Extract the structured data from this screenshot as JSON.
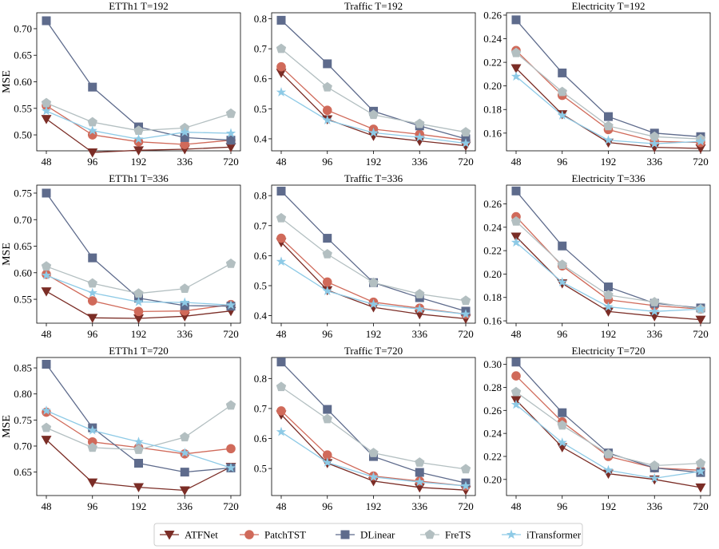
{
  "series_styles": [
    {
      "name": "ATFNet",
      "color": "#7b2d26",
      "marker": "triangle-down-icon"
    },
    {
      "name": "PatchTST",
      "color": "#d06a5a",
      "marker": "circle-icon"
    },
    {
      "name": "DLinear",
      "color": "#5e6b8c",
      "marker": "square-icon"
    },
    {
      "name": "FreTS",
      "color": "#b3bfc1",
      "marker": "pentagon-icon"
    },
    {
      "name": "iTransformer",
      "color": "#8ecae6",
      "marker": "star-icon"
    }
  ],
  "chart_data": [
    {
      "type": "line",
      "title": "ETTh1 T=192",
      "ylabel": "MSE",
      "xlabel": "",
      "categories": [
        "48",
        "96",
        "192",
        "336",
        "720"
      ],
      "ylim": [
        0.47,
        0.73
      ],
      "yticks": [
        0.5,
        0.55,
        0.6,
        0.65,
        0.7
      ],
      "yticklabels": [
        "0.50",
        "0.55",
        "0.60",
        "0.65",
        "0.70"
      ],
      "series": [
        {
          "name": "ATFNet",
          "values": [
            0.53,
            0.467,
            0.471,
            0.473,
            0.477
          ]
        },
        {
          "name": "PatchTST",
          "values": [
            0.555,
            0.5,
            0.487,
            0.482,
            0.49
          ]
        },
        {
          "name": "DLinear",
          "values": [
            0.715,
            0.59,
            0.515,
            0.495,
            0.49
          ]
        },
        {
          "name": "FreTS",
          "values": [
            0.56,
            0.524,
            0.508,
            0.513,
            0.54
          ]
        },
        {
          "name": "iTransformer",
          "values": [
            0.545,
            0.508,
            0.492,
            0.505,
            0.503
          ]
        }
      ]
    },
    {
      "type": "line",
      "title": "Traffic T=192",
      "ylabel": "",
      "xlabel": "",
      "categories": [
        "48",
        "96",
        "192",
        "336",
        "720"
      ],
      "ylim": [
        0.36,
        0.82
      ],
      "yticks": [
        0.4,
        0.5,
        0.6,
        0.7,
        0.8
      ],
      "yticklabels": [
        "0.4",
        "0.5",
        "0.6",
        "0.7",
        "0.8"
      ],
      "series": [
        {
          "name": "ATFNet",
          "values": [
            0.62,
            0.465,
            0.41,
            0.393,
            0.377
          ]
        },
        {
          "name": "PatchTST",
          "values": [
            0.64,
            0.495,
            0.432,
            0.415,
            0.395
          ]
        },
        {
          "name": "DLinear",
          "values": [
            0.795,
            0.65,
            0.492,
            0.443,
            0.4
          ]
        },
        {
          "name": "FreTS",
          "values": [
            0.7,
            0.572,
            0.48,
            0.45,
            0.422
          ]
        },
        {
          "name": "iTransformer",
          "values": [
            0.555,
            0.462,
            0.42,
            0.405,
            0.385
          ]
        }
      ]
    },
    {
      "type": "line",
      "title": "Electricity T=192",
      "ylabel": "",
      "xlabel": "",
      "categories": [
        "48",
        "96",
        "192",
        "336",
        "720"
      ],
      "ylim": [
        0.145,
        0.262
      ],
      "yticks": [
        0.16,
        0.18,
        0.2,
        0.22,
        0.24,
        0.26
      ],
      "yticklabels": [
        "0.16",
        "0.18",
        "0.20",
        "0.22",
        "0.24",
        "0.26"
      ],
      "series": [
        {
          "name": "ATFNet",
          "values": [
            0.215,
            0.176,
            0.152,
            0.148,
            0.147
          ]
        },
        {
          "name": "PatchTST",
          "values": [
            0.23,
            0.192,
            0.163,
            0.153,
            0.152
          ]
        },
        {
          "name": "DLinear",
          "values": [
            0.256,
            0.211,
            0.174,
            0.16,
            0.157
          ]
        },
        {
          "name": "FreTS",
          "values": [
            0.228,
            0.195,
            0.166,
            0.157,
            0.155
          ]
        },
        {
          "name": "iTransformer",
          "values": [
            0.208,
            0.175,
            0.154,
            0.151,
            0.153
          ]
        }
      ]
    },
    {
      "type": "line",
      "title": "ETTh1 T=336",
      "ylabel": "MSE",
      "xlabel": "",
      "categories": [
        "48",
        "96",
        "192",
        "336",
        "720"
      ],
      "ylim": [
        0.505,
        0.765
      ],
      "yticks": [
        0.55,
        0.6,
        0.65,
        0.7,
        0.75
      ],
      "yticklabels": [
        "0.55",
        "0.60",
        "0.65",
        "0.70",
        "0.75"
      ],
      "series": [
        {
          "name": "ATFNet",
          "values": [
            0.565,
            0.515,
            0.514,
            0.518,
            0.528
          ]
        },
        {
          "name": "PatchTST",
          "values": [
            0.597,
            0.547,
            0.527,
            0.528,
            0.54
          ]
        },
        {
          "name": "DLinear",
          "values": [
            0.75,
            0.628,
            0.552,
            0.538,
            0.537
          ]
        },
        {
          "name": "FreTS",
          "values": [
            0.612,
            0.58,
            0.561,
            0.57,
            0.617
          ]
        },
        {
          "name": "iTransformer",
          "values": [
            0.595,
            0.562,
            0.545,
            0.544,
            0.539
          ]
        }
      ]
    },
    {
      "type": "line",
      "title": "Traffic T=336",
      "ylabel": "",
      "xlabel": "",
      "categories": [
        "48",
        "96",
        "192",
        "336",
        "720"
      ],
      "ylim": [
        0.375,
        0.835
      ],
      "yticks": [
        0.4,
        0.5,
        0.6,
        0.7,
        0.8
      ],
      "yticklabels": [
        "0.4",
        "0.5",
        "0.6",
        "0.7",
        "0.8"
      ],
      "series": [
        {
          "name": "ATFNet",
          "values": [
            0.645,
            0.485,
            0.428,
            0.405,
            0.39
          ]
        },
        {
          "name": "PatchTST",
          "values": [
            0.658,
            0.512,
            0.445,
            0.425,
            0.405
          ]
        },
        {
          "name": "DLinear",
          "values": [
            0.815,
            0.658,
            0.51,
            0.46,
            0.415
          ]
        },
        {
          "name": "FreTS",
          "values": [
            0.725,
            0.605,
            0.51,
            0.472,
            0.45
          ]
        },
        {
          "name": "iTransformer",
          "values": [
            0.58,
            0.482,
            0.438,
            0.422,
            0.405
          ]
        }
      ]
    },
    {
      "type": "line",
      "title": "Electricity T=336",
      "ylabel": "",
      "xlabel": "",
      "categories": [
        "48",
        "96",
        "192",
        "336",
        "720"
      ],
      "ylim": [
        0.158,
        0.276
      ],
      "yticks": [
        0.16,
        0.18,
        0.2,
        0.22,
        0.24,
        0.26
      ],
      "yticklabels": [
        "0.16",
        "0.18",
        "0.20",
        "0.22",
        "0.24",
        "0.26"
      ],
      "series": [
        {
          "name": "ATFNet",
          "values": [
            0.232,
            0.192,
            0.168,
            0.164,
            0.161
          ]
        },
        {
          "name": "PatchTST",
          "values": [
            0.249,
            0.207,
            0.178,
            0.173,
            0.17
          ]
        },
        {
          "name": "DLinear",
          "values": [
            0.271,
            0.224,
            0.189,
            0.175,
            0.171
          ]
        },
        {
          "name": "FreTS",
          "values": [
            0.245,
            0.208,
            0.182,
            0.176,
            0.17
          ]
        },
        {
          "name": "iTransformer",
          "values": [
            0.227,
            0.193,
            0.172,
            0.168,
            0.17
          ]
        }
      ]
    },
    {
      "type": "line",
      "title": "ETTh1 T=720",
      "ylabel": "MSE",
      "xlabel": "",
      "categories": [
        "48",
        "96",
        "192",
        "336",
        "720"
      ],
      "ylim": [
        0.605,
        0.87
      ],
      "yticks": [
        0.65,
        0.7,
        0.75,
        0.8,
        0.85
      ],
      "yticklabels": [
        "0.65",
        "0.70",
        "0.75",
        "0.80",
        "0.85"
      ],
      "series": [
        {
          "name": "ATFNet",
          "values": [
            0.712,
            0.63,
            0.621,
            0.615,
            0.66
          ]
        },
        {
          "name": "PatchTST",
          "values": [
            0.765,
            0.708,
            0.697,
            0.685,
            0.695
          ]
        },
        {
          "name": "DLinear",
          "values": [
            0.857,
            0.735,
            0.667,
            0.65,
            0.658
          ]
        },
        {
          "name": "FreTS",
          "values": [
            0.735,
            0.697,
            0.693,
            0.717,
            0.778
          ]
        },
        {
          "name": "iTransformer",
          "values": [
            0.768,
            0.73,
            0.708,
            0.687,
            0.658
          ]
        }
      ]
    },
    {
      "type": "line",
      "title": "Traffic T=720",
      "ylabel": "",
      "xlabel": "",
      "categories": [
        "48",
        "96",
        "192",
        "336",
        "720"
      ],
      "ylim": [
        0.41,
        0.87
      ],
      "yticks": [
        0.5,
        0.6,
        0.7,
        0.8
      ],
      "yticklabels": [
        "0.5",
        "0.6",
        "0.7",
        "0.8"
      ],
      "series": [
        {
          "name": "ATFNet",
          "values": [
            0.68,
            0.518,
            0.458,
            0.437,
            0.428
          ]
        },
        {
          "name": "PatchTST",
          "values": [
            0.692,
            0.545,
            0.475,
            0.458,
            0.442
          ]
        },
        {
          "name": "DLinear",
          "values": [
            0.855,
            0.697,
            0.54,
            0.487,
            0.452
          ]
        },
        {
          "name": "FreTS",
          "values": [
            0.772,
            0.665,
            0.552,
            0.52,
            0.498
          ]
        },
        {
          "name": "iTransformer",
          "values": [
            0.622,
            0.52,
            0.472,
            0.455,
            0.442
          ]
        }
      ]
    },
    {
      "type": "line",
      "title": "Electricity T=720",
      "ylabel": "",
      "xlabel": "",
      "categories": [
        "48",
        "96",
        "192",
        "336",
        "720"
      ],
      "ylim": [
        0.186,
        0.306
      ],
      "yticks": [
        0.2,
        0.22,
        0.24,
        0.26,
        0.28,
        0.3
      ],
      "yticklabels": [
        "0.20",
        "0.22",
        "0.24",
        "0.26",
        "0.28",
        "0.30"
      ],
      "series": [
        {
          "name": "ATFNet",
          "values": [
            0.269,
            0.228,
            0.205,
            0.2,
            0.193
          ]
        },
        {
          "name": "PatchTST",
          "values": [
            0.29,
            0.25,
            0.22,
            0.21,
            0.208
          ]
        },
        {
          "name": "DLinear",
          "values": [
            0.302,
            0.258,
            0.223,
            0.21,
            0.206
          ]
        },
        {
          "name": "FreTS",
          "values": [
            0.276,
            0.247,
            0.222,
            0.212,
            0.214
          ]
        },
        {
          "name": "iTransformer",
          "values": [
            0.265,
            0.232,
            0.208,
            0.201,
            0.207
          ]
        }
      ]
    }
  ]
}
